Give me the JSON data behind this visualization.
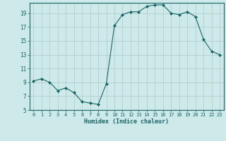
{
  "x": [
    0,
    1,
    2,
    3,
    4,
    5,
    6,
    7,
    8,
    9,
    10,
    11,
    12,
    13,
    14,
    15,
    16,
    17,
    18,
    19,
    20,
    21,
    22,
    23
  ],
  "y": [
    9.2,
    9.5,
    9.0,
    7.8,
    8.2,
    7.5,
    6.2,
    6.0,
    5.8,
    8.8,
    17.2,
    18.8,
    19.2,
    19.2,
    20.0,
    20.2,
    20.2,
    19.0,
    18.8,
    19.2,
    18.5,
    15.2,
    13.5,
    13.0
  ],
  "xlabel": "Humidex (Indice chaleur)",
  "xlim": [
    -0.5,
    23.5
  ],
  "ylim": [
    5,
    20.5
  ],
  "yticks": [
    5,
    7,
    9,
    11,
    13,
    15,
    17,
    19
  ],
  "xticks": [
    0,
    1,
    2,
    3,
    4,
    5,
    6,
    7,
    8,
    9,
    10,
    11,
    12,
    13,
    14,
    15,
    16,
    17,
    18,
    19,
    20,
    21,
    22,
    23
  ],
  "bg_color": "#cde9e9",
  "line_color": "#1a6666",
  "grid_color": "#b0c8c8",
  "tick_color": "#1a6666"
}
